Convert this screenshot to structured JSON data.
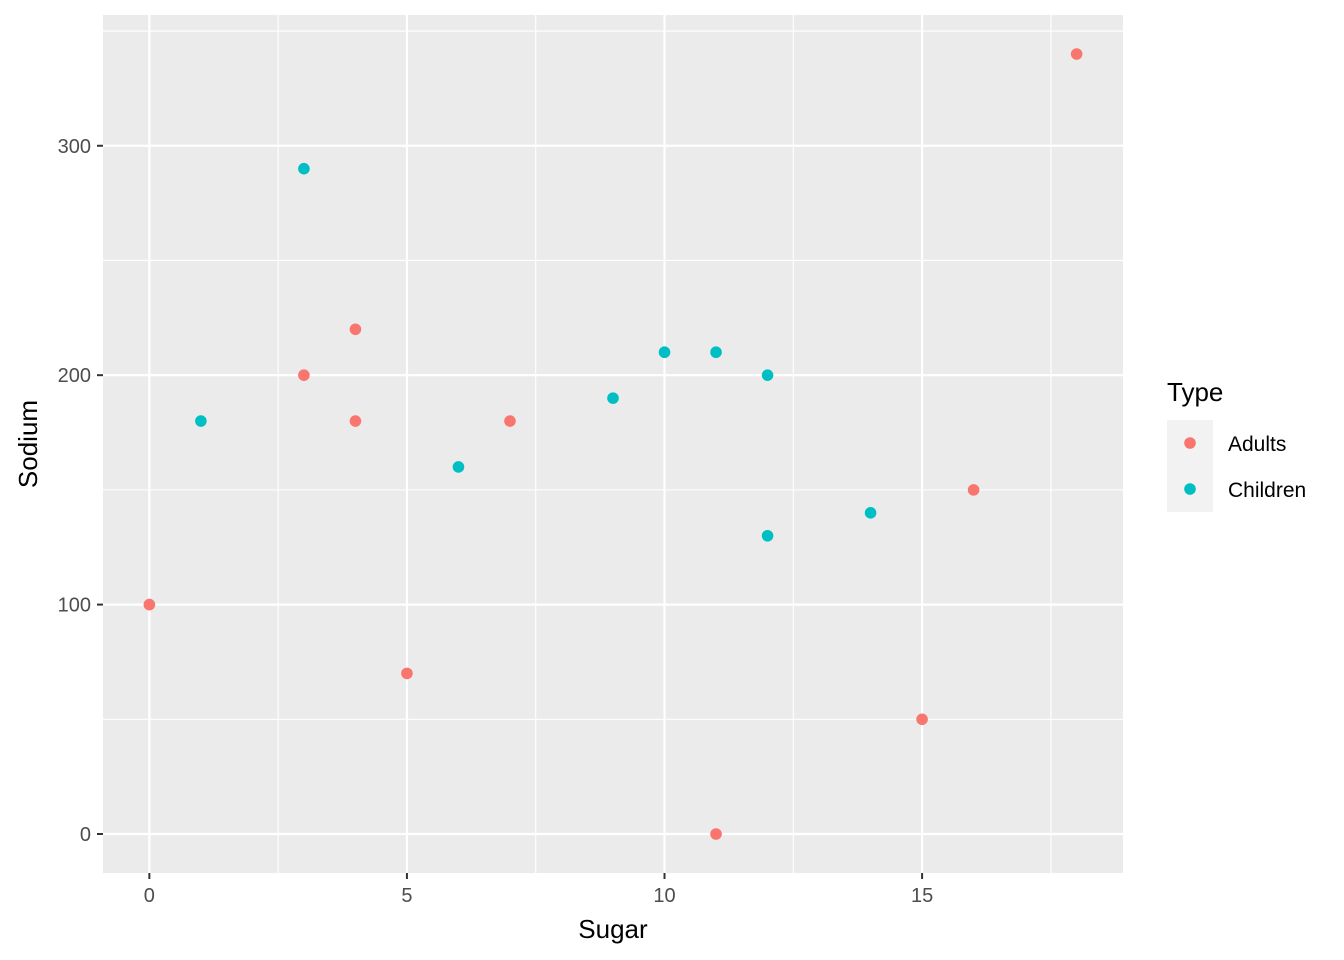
{
  "chart_data": {
    "type": "scatter",
    "xlabel": "Sugar",
    "ylabel": "Sodium",
    "xlim": [
      -0.9,
      18.9
    ],
    "ylim": [
      -17,
      357
    ],
    "x_ticks": [
      0,
      5,
      10,
      15
    ],
    "y_ticks": [
      0,
      100,
      200,
      300
    ],
    "x_minor": [
      2.5,
      7.5,
      12.5,
      17.5
    ],
    "y_minor": [
      50,
      150,
      250,
      350
    ],
    "grid": true,
    "legend": {
      "title": "Type",
      "placement": "right"
    },
    "series": [
      {
        "name": "Adults",
        "color": "#F8766D",
        "points": [
          {
            "x": 0,
            "y": 100
          },
          {
            "x": 3,
            "y": 200
          },
          {
            "x": 4,
            "y": 220
          },
          {
            "x": 4,
            "y": 180
          },
          {
            "x": 5,
            "y": 70
          },
          {
            "x": 7,
            "y": 180
          },
          {
            "x": 11,
            "y": 0
          },
          {
            "x": 15,
            "y": 50
          },
          {
            "x": 16,
            "y": 150
          },
          {
            "x": 18,
            "y": 340
          }
        ]
      },
      {
        "name": "Children",
        "color": "#00BFC4",
        "points": [
          {
            "x": 1,
            "y": 180
          },
          {
            "x": 3,
            "y": 290
          },
          {
            "x": 6,
            "y": 160
          },
          {
            "x": 9,
            "y": 190
          },
          {
            "x": 10,
            "y": 210
          },
          {
            "x": 11,
            "y": 210
          },
          {
            "x": 12,
            "y": 200
          },
          {
            "x": 12,
            "y": 130
          },
          {
            "x": 14,
            "y": 140
          }
        ]
      }
    ]
  },
  "style": {
    "panel_background": "#EBEBEB",
    "grid_color": "#FFFFFF",
    "tick_color": "#333333"
  }
}
